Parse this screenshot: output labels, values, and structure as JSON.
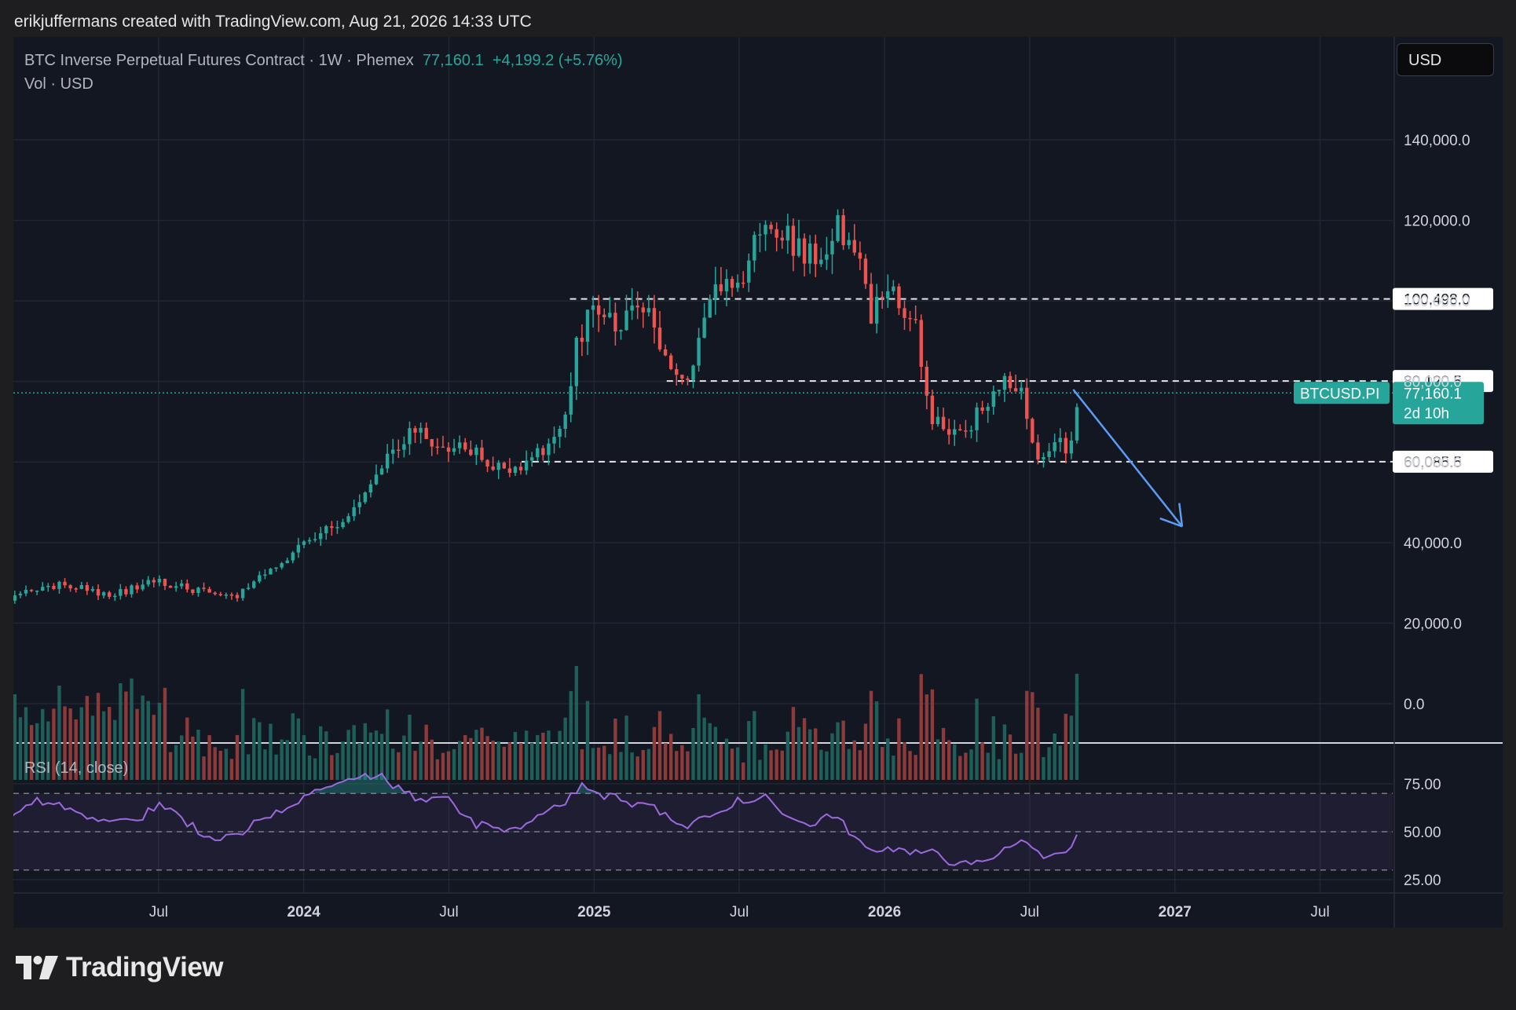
{
  "header": {
    "credit": "erikjuffermans created with TradingView.com, Aug 21, 2026 14:33 UTC"
  },
  "legend": {
    "symbol": "BTC Inverse Perpetual Futures Contract · 1W · Phemex",
    "last": "77,160.1",
    "change": "+4,199.2 (+5.76%)",
    "volume": "Vol · USD"
  },
  "currency": "USD",
  "brand": {
    "name": "TradingView",
    "icon": "tradingview-logo-icon"
  },
  "colors": {
    "up": "#26a69a",
    "down": "#ef5350",
    "rsi": "#9c6ade",
    "arrow": "#5b9cf5",
    "background": "#131722"
  },
  "chart_data": [
    {
      "type": "candlestick",
      "title": "BTC Inverse Perpetual Futures Contract · 1W · Phemex",
      "ylim": [
        -10000,
        175000
      ],
      "y_ticks": [
        0,
        20000,
        40000,
        60000,
        80000,
        100000,
        120000,
        140000
      ],
      "y_tick_labels": [
        "0.0",
        "20,000.0",
        "40,000.0",
        "60,000.0",
        "80,000.0",
        "100,000.0",
        "120,000.0",
        "140,000.0"
      ],
      "x_tick_labels": [
        "Jul",
        "2024",
        "Jul",
        "2025",
        "Jul",
        "2026",
        "Jul",
        "2027",
        "Jul"
      ],
      "x_ticks_months": [
        6,
        12,
        18,
        24,
        30,
        36,
        42,
        48,
        54
      ],
      "x_range_months": [
        0,
        57
      ],
      "levels": [
        {
          "value": 100498.0,
          "label": "100,498.0"
        },
        {
          "value": 80120.5,
          "label": "80,120.5"
        },
        {
          "value": 60085.5,
          "label": "60,085.5"
        }
      ],
      "last_price": {
        "symbol": "BTCUSD.PI",
        "value": 77160.1,
        "label": "77,160.1",
        "countdown": "2d 10h"
      },
      "projection_arrow": {
        "from": {
          "month": 43.8,
          "price": 78000
        },
        "to": {
          "month": 48.3,
          "price": 44000
        }
      },
      "anchors": [
        [
          -0.5,
          26000
        ],
        [
          2,
          29500
        ],
        [
          4,
          27000
        ],
        [
          6,
          30500
        ],
        [
          7,
          29000
        ],
        [
          9,
          26000
        ],
        [
          11,
          35000
        ],
        [
          12.2,
          42000
        ],
        [
          13,
          43000
        ],
        [
          14,
          47000
        ],
        [
          14.7,
          52000
        ],
        [
          15.7,
          63000
        ],
        [
          16.5,
          68000
        ],
        [
          18,
          62000
        ],
        [
          19,
          64000
        ],
        [
          20,
          58000
        ],
        [
          21,
          60000
        ],
        [
          22,
          62000
        ],
        [
          22.8,
          73000
        ],
        [
          23.3,
          89000
        ],
        [
          24,
          100000
        ],
        [
          25,
          95000
        ],
        [
          26,
          100000
        ],
        [
          27,
          84000
        ],
        [
          28,
          80000
        ],
        [
          29,
          104000
        ],
        [
          30,
          105000
        ],
        [
          31,
          117000
        ],
        [
          32,
          116000
        ],
        [
          33,
          110000
        ],
        [
          34,
          119000
        ],
        [
          34.8,
          114000
        ],
        [
          35.4,
          97000
        ],
        [
          36,
          101000
        ],
        [
          37.2,
          98000
        ],
        [
          37.7,
          75000
        ],
        [
          38.2,
          69000
        ],
        [
          39,
          68000
        ],
        [
          40,
          72000
        ],
        [
          41,
          79000
        ],
        [
          41.7,
          76000
        ],
        [
          42.3,
          62000
        ],
        [
          43.0,
          65000
        ],
        [
          43.8,
          63000
        ],
        [
          44.0,
          77160
        ]
      ],
      "candle_span_months": [
        -0.4,
        43.95
      ],
      "candle_seed": 20260821
    },
    {
      "type": "bar",
      "title": "Vol · USD",
      "y_tick_labels": [
        "0.0"
      ],
      "note": "weekly volume bars, colored by candle direction"
    },
    {
      "type": "line",
      "title": "RSI (14, close)",
      "ylim": [
        20,
        85
      ],
      "y_ticks": [
        25,
        50,
        75
      ],
      "y_tick_labels": [
        "25.00",
        "50.00",
        "75.00"
      ],
      "bands": [
        30,
        50,
        70
      ],
      "anchors": [
        [
          -0.5,
          52
        ],
        [
          1,
          67
        ],
        [
          3,
          58
        ],
        [
          5,
          55
        ],
        [
          6,
          65
        ],
        [
          8,
          48
        ],
        [
          9,
          47
        ],
        [
          11,
          62
        ],
        [
          12.5,
          70
        ],
        [
          13.5,
          75
        ],
        [
          15,
          80
        ],
        [
          16.5,
          68
        ],
        [
          18,
          66
        ],
        [
          19,
          54
        ],
        [
          20.5,
          52
        ],
        [
          22,
          58
        ],
        [
          22.8,
          66
        ],
        [
          23.5,
          73
        ],
        [
          25,
          67
        ],
        [
          26.5,
          62
        ],
        [
          27.5,
          52
        ],
        [
          29,
          60
        ],
        [
          30,
          66
        ],
        [
          31,
          69
        ],
        [
          32,
          59
        ],
        [
          33,
          55
        ],
        [
          34,
          58
        ],
        [
          35,
          45
        ],
        [
          36,
          40
        ],
        [
          37,
          39
        ],
        [
          38,
          40
        ],
        [
          39,
          32
        ],
        [
          40,
          33
        ],
        [
          41,
          43
        ],
        [
          41.7,
          46
        ],
        [
          42.4,
          38
        ],
        [
          43.0,
          40
        ],
        [
          43.9,
          42
        ],
        [
          44.0,
          55
        ]
      ]
    }
  ]
}
